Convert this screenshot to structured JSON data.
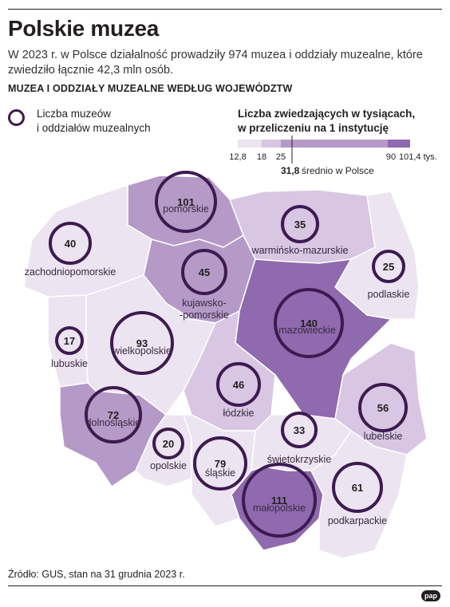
{
  "title": "Polskie muzea",
  "subtitle": "W 2023 r. w Polsce działalność prowadziły 974 muzea i oddziały muzealne, które zwiedziło łącznie 42,3 mln osób.",
  "section_title": "MUZEA I ODDZIAŁY MUZEALNE WEDŁUG WOJEWÓDZTW",
  "legend": {
    "circle_label_1": "Liczba muzeów",
    "circle_label_2": "i oddziałów muzealnych",
    "scale_title_1": "Liczba zwiedzających w tysiącach,",
    "scale_title_2": "w przeliczeniu na 1 instytucję",
    "ticks": [
      "12,8",
      "18",
      "25",
      "90",
      "101,4 tys."
    ],
    "average_value": "31,8",
    "average_label": "średnio w Polsce",
    "colors": [
      "#ece4f0",
      "#d8c6e2",
      "#b59ac8",
      "#8f6aaf"
    ]
  },
  "regions": [
    {
      "name": "pomorskie",
      "museums": "101",
      "fill": "#b59ac8"
    },
    {
      "name": "zachodniopomorskie",
      "museums": "40",
      "fill": "#ece4f0"
    },
    {
      "name": "warmińsko-mazurskie",
      "museums": "35",
      "fill": "#d8c6e2"
    },
    {
      "name": "podlaskie",
      "museums": "25",
      "fill": "#ece4f0"
    },
    {
      "name": "kujawsko-\n-pomorskie",
      "museums": "45",
      "fill": "#b59ac8"
    },
    {
      "name": "mazowieckie",
      "museums": "140",
      "fill": "#8f6aaf"
    },
    {
      "name": "lubuskie",
      "museums": "17",
      "fill": "#ece4f0"
    },
    {
      "name": "wielkopolskie",
      "museums": "93",
      "fill": "#ece4f0"
    },
    {
      "name": "łódzkie",
      "museums": "46",
      "fill": "#d8c6e2"
    },
    {
      "name": "dolnośląskie",
      "museums": "72",
      "fill": "#b59ac8"
    },
    {
      "name": "lubelskie",
      "museums": "56",
      "fill": "#d8c6e2"
    },
    {
      "name": "opolskie",
      "museums": "20",
      "fill": "#ece4f0"
    },
    {
      "name": "śląskie",
      "museums": "79",
      "fill": "#ece4f0"
    },
    {
      "name": "świętokrzyskie",
      "museums": "33",
      "fill": "#ece4f0"
    },
    {
      "name": "małopolskie",
      "museums": "111",
      "fill": "#8f6aaf"
    },
    {
      "name": "podkarpackie",
      "museums": "61",
      "fill": "#ece4f0"
    }
  ],
  "source": "Źródło: GUS, stan na 31 grudnia 2023 r.",
  "logo_text": "pap"
}
